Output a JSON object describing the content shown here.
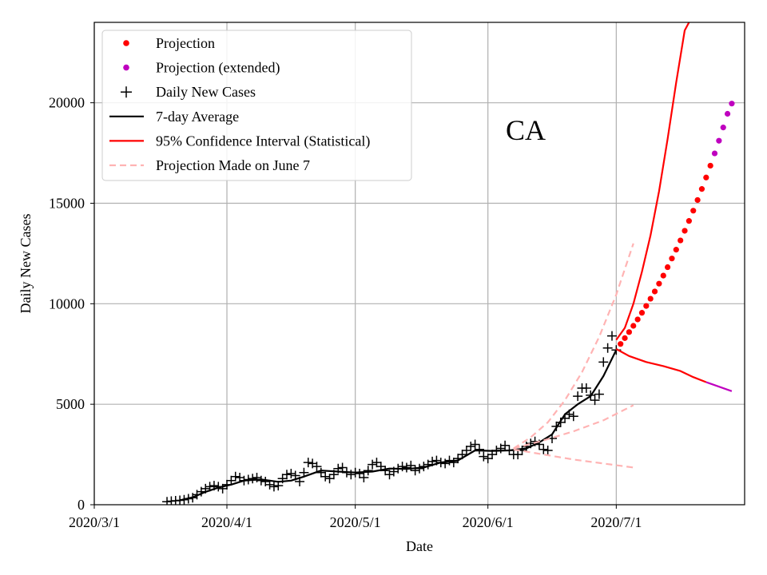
{
  "chart_data": {
    "type": "line",
    "title": "",
    "annotation": "CA",
    "xlabel": "Date",
    "ylabel": "Daily New Cases",
    "x_axis": "date",
    "xlim": [
      "2020-03-01",
      "2020-07-31"
    ],
    "ylim": [
      0,
      24000
    ],
    "x_ticks": [
      "2020-03-01",
      "2020-04-01",
      "2020-05-01",
      "2020-06-01",
      "2020-07-01"
    ],
    "x_tick_labels": [
      "2020/3/1",
      "2020/4/1",
      "2020/5/1",
      "2020/6/1",
      "2020/7/1"
    ],
    "y_ticks": [
      0,
      5000,
      10000,
      15000,
      20000
    ],
    "y_tick_labels": [
      "0",
      "5000",
      "10000",
      "15000",
      "20000"
    ],
    "grid": true,
    "legend_position": "top-left",
    "legend": [
      {
        "label": "Projection",
        "marker": "dot",
        "color": "#ff0000"
      },
      {
        "label": "Projection (extended)",
        "marker": "dot",
        "color": "#bf00bf"
      },
      {
        "label": "Daily New Cases",
        "marker": "plus",
        "color": "#000000"
      },
      {
        "label": "7-day Average",
        "marker": "line",
        "color": "#000000"
      },
      {
        "label": "95% Confidence Interval (Statistical)",
        "marker": "line",
        "color": "#ff0000"
      },
      {
        "label": "Projection Made on June 7",
        "marker": "dashed",
        "color": "#ffb3b3"
      }
    ],
    "series": [
      {
        "name": "Daily New Cases",
        "kind": "markers-plus",
        "color": "#000000",
        "points": [
          [
            "2020-03-18",
            150
          ],
          [
            "2020-03-19",
            180
          ],
          [
            "2020-03-20",
            200
          ],
          [
            "2020-03-21",
            220
          ],
          [
            "2020-03-22",
            250
          ],
          [
            "2020-03-23",
            300
          ],
          [
            "2020-03-24",
            350
          ],
          [
            "2020-03-25",
            500
          ],
          [
            "2020-03-26",
            650
          ],
          [
            "2020-03-27",
            800
          ],
          [
            "2020-03-28",
            900
          ],
          [
            "2020-03-29",
            950
          ],
          [
            "2020-03-30",
            900
          ],
          [
            "2020-03-31",
            800
          ],
          [
            "2020-04-01",
            1000
          ],
          [
            "2020-04-02",
            1200
          ],
          [
            "2020-04-03",
            1400
          ],
          [
            "2020-04-04",
            1350
          ],
          [
            "2020-04-05",
            1200
          ],
          [
            "2020-04-06",
            1250
          ],
          [
            "2020-04-07",
            1300
          ],
          [
            "2020-04-08",
            1350
          ],
          [
            "2020-04-09",
            1200
          ],
          [
            "2020-04-10",
            1150
          ],
          [
            "2020-04-11",
            1000
          ],
          [
            "2020-04-12",
            900
          ],
          [
            "2020-04-13",
            950
          ],
          [
            "2020-04-14",
            1300
          ],
          [
            "2020-04-15",
            1500
          ],
          [
            "2020-04-16",
            1550
          ],
          [
            "2020-04-17",
            1450
          ],
          [
            "2020-04-18",
            1150
          ],
          [
            "2020-04-19",
            1600
          ],
          [
            "2020-04-20",
            2100
          ],
          [
            "2020-04-21",
            2050
          ],
          [
            "2020-04-22",
            1900
          ],
          [
            "2020-04-23",
            1600
          ],
          [
            "2020-04-24",
            1400
          ],
          [
            "2020-04-25",
            1300
          ],
          [
            "2020-04-26",
            1500
          ],
          [
            "2020-04-27",
            1800
          ],
          [
            "2020-04-28",
            1850
          ],
          [
            "2020-04-29",
            1600
          ],
          [
            "2020-04-30",
            1500
          ],
          [
            "2020-05-01",
            1600
          ],
          [
            "2020-05-02",
            1550
          ],
          [
            "2020-05-03",
            1350
          ],
          [
            "2020-05-04",
            1700
          ],
          [
            "2020-05-05",
            2000
          ],
          [
            "2020-05-06",
            2100
          ],
          [
            "2020-05-07",
            1900
          ],
          [
            "2020-05-08",
            1700
          ],
          [
            "2020-05-09",
            1500
          ],
          [
            "2020-05-10",
            1650
          ],
          [
            "2020-05-11",
            1800
          ],
          [
            "2020-05-12",
            1900
          ],
          [
            "2020-05-13",
            1850
          ],
          [
            "2020-05-14",
            1950
          ],
          [
            "2020-05-15",
            1700
          ],
          [
            "2020-05-16",
            1800
          ],
          [
            "2020-05-17",
            1900
          ],
          [
            "2020-05-18",
            2000
          ],
          [
            "2020-05-19",
            2150
          ],
          [
            "2020-05-20",
            2200
          ],
          [
            "2020-05-21",
            2100
          ],
          [
            "2020-05-22",
            2050
          ],
          [
            "2020-05-23",
            2200
          ],
          [
            "2020-05-24",
            2100
          ],
          [
            "2020-05-25",
            2300
          ],
          [
            "2020-05-26",
            2500
          ],
          [
            "2020-05-27",
            2700
          ],
          [
            "2020-05-28",
            2900
          ],
          [
            "2020-05-29",
            3000
          ],
          [
            "2020-05-30",
            2750
          ],
          [
            "2020-05-31",
            2400
          ],
          [
            "2020-06-01",
            2300
          ],
          [
            "2020-06-02",
            2500
          ],
          [
            "2020-06-03",
            2700
          ],
          [
            "2020-06-04",
            2800
          ],
          [
            "2020-06-05",
            2950
          ],
          [
            "2020-06-06",
            2700
          ],
          [
            "2020-06-07",
            2500
          ],
          [
            "2020-06-08",
            2500
          ],
          [
            "2020-06-09",
            2700
          ],
          [
            "2020-06-10",
            2900
          ],
          [
            "2020-06-11",
            3050
          ],
          [
            "2020-06-12",
            3150
          ],
          [
            "2020-06-13",
            3000
          ],
          [
            "2020-06-14",
            2750
          ],
          [
            "2020-06-15",
            2700
          ],
          [
            "2020-06-16",
            3300
          ],
          [
            "2020-06-17",
            3900
          ],
          [
            "2020-06-18",
            4100
          ],
          [
            "2020-06-19",
            4300
          ],
          [
            "2020-06-20",
            4500
          ],
          [
            "2020-06-21",
            4400
          ],
          [
            "2020-06-22",
            5400
          ],
          [
            "2020-06-23",
            5800
          ],
          [
            "2020-06-24",
            5800
          ],
          [
            "2020-06-25",
            5450
          ],
          [
            "2020-06-26",
            5200
          ],
          [
            "2020-06-27",
            5500
          ],
          [
            "2020-06-28",
            7100
          ],
          [
            "2020-06-29",
            7800
          ],
          [
            "2020-06-30",
            8400
          ],
          [
            "2020-07-01",
            7700
          ]
        ]
      },
      {
        "name": "7-day Average",
        "kind": "line",
        "color": "#000000",
        "points": [
          [
            "2020-03-21",
            220
          ],
          [
            "2020-03-24",
            370
          ],
          [
            "2020-03-27",
            640
          ],
          [
            "2020-03-30",
            850
          ],
          [
            "2020-04-02",
            1000
          ],
          [
            "2020-04-05",
            1200
          ],
          [
            "2020-04-09",
            1260
          ],
          [
            "2020-04-13",
            1140
          ],
          [
            "2020-04-16",
            1200
          ],
          [
            "2020-04-19",
            1400
          ],
          [
            "2020-04-23",
            1700
          ],
          [
            "2020-04-27",
            1650
          ],
          [
            "2020-05-01",
            1600
          ],
          [
            "2020-05-05",
            1650
          ],
          [
            "2020-05-09",
            1800
          ],
          [
            "2020-05-13",
            1780
          ],
          [
            "2020-05-17",
            1850
          ],
          [
            "2020-05-21",
            2100
          ],
          [
            "2020-05-25",
            2200
          ],
          [
            "2020-05-29",
            2700
          ],
          [
            "2020-06-02",
            2680
          ],
          [
            "2020-06-06",
            2700
          ],
          [
            "2020-06-10",
            2800
          ],
          [
            "2020-06-13",
            3100
          ],
          [
            "2020-06-16",
            3500
          ],
          [
            "2020-06-19",
            4500
          ],
          [
            "2020-06-22",
            5000
          ],
          [
            "2020-06-25",
            5400
          ],
          [
            "2020-06-28",
            6400
          ],
          [
            "2020-07-01",
            7700
          ]
        ]
      },
      {
        "name": "Projection",
        "kind": "markers-dot",
        "color": "#ff0000",
        "points": [
          [
            "2020-07-02",
            8000
          ],
          [
            "2020-07-03",
            8290
          ],
          [
            "2020-07-04",
            8590
          ],
          [
            "2020-07-05",
            8900
          ],
          [
            "2020-07-06",
            9220
          ],
          [
            "2020-07-07",
            9550
          ],
          [
            "2020-07-08",
            9890
          ],
          [
            "2020-07-09",
            10250
          ],
          [
            "2020-07-10",
            10610
          ],
          [
            "2020-07-11",
            11000
          ],
          [
            "2020-07-12",
            11400
          ],
          [
            "2020-07-13",
            11820
          ],
          [
            "2020-07-14",
            12250
          ],
          [
            "2020-07-15",
            12690
          ],
          [
            "2020-07-16",
            13150
          ],
          [
            "2020-07-17",
            13630
          ],
          [
            "2020-07-18",
            14120
          ],
          [
            "2020-07-19",
            14630
          ],
          [
            "2020-07-20",
            15160
          ],
          [
            "2020-07-21",
            15710
          ],
          [
            "2020-07-22",
            16280
          ],
          [
            "2020-07-23",
            16870
          ]
        ]
      },
      {
        "name": "Projection (extended)",
        "kind": "markers-dot",
        "color": "#bf00bf",
        "points": [
          [
            "2020-07-24",
            17480
          ],
          [
            "2020-07-25",
            18110
          ],
          [
            "2020-07-26",
            18770
          ],
          [
            "2020-07-27",
            19450
          ],
          [
            "2020-07-28",
            19960
          ]
        ]
      },
      {
        "name": "95% Confidence Interval (Statistical)",
        "kind": "line",
        "color": "#ff0000",
        "points": [
          [
            "2020-07-01",
            8200
          ],
          [
            "2020-07-03",
            8800
          ],
          [
            "2020-07-05",
            10000
          ],
          [
            "2020-07-07",
            11600
          ],
          [
            "2020-07-09",
            13400
          ],
          [
            "2020-07-11",
            15600
          ],
          [
            "2020-07-13",
            18200
          ],
          [
            "2020-07-15",
            21000
          ],
          [
            "2020-07-17",
            23600
          ],
          [
            "2020-07-18",
            24000
          ]
        ]
      },
      {
        "name": "95% Confidence Interval (Statistical)",
        "kind": "line",
        "color": "#ff0000",
        "points": [
          [
            "2020-07-01",
            7750
          ],
          [
            "2020-07-04",
            7400
          ],
          [
            "2020-07-08",
            7100
          ],
          [
            "2020-07-12",
            6900
          ],
          [
            "2020-07-16",
            6650
          ],
          [
            "2020-07-19",
            6350
          ],
          [
            "2020-07-22",
            6100
          ]
        ]
      },
      {
        "name": "95% Confidence Interval (Statistical)",
        "kind": "line",
        "color": "#bf00bf",
        "points": [
          [
            "2020-07-22",
            6100
          ],
          [
            "2020-07-28",
            5650
          ]
        ]
      },
      {
        "name": "Projection Made on June 7",
        "kind": "dashed",
        "color": "#ffb3b3",
        "points": [
          [
            "2020-06-07",
            2800
          ],
          [
            "2020-06-11",
            3350
          ],
          [
            "2020-06-15",
            4100
          ],
          [
            "2020-06-19",
            5200
          ],
          [
            "2020-06-23",
            6600
          ],
          [
            "2020-06-27",
            8350
          ],
          [
            "2020-07-01",
            10450
          ],
          [
            "2020-07-05",
            13000
          ]
        ]
      },
      {
        "name": "Projection Made on June 7",
        "kind": "dashed",
        "color": "#ffb3b3",
        "points": [
          [
            "2020-06-07",
            2800
          ],
          [
            "2020-06-14",
            3200
          ],
          [
            "2020-06-21",
            3650
          ],
          [
            "2020-06-28",
            4200
          ],
          [
            "2020-07-05",
            4950
          ]
        ]
      },
      {
        "name": "Projection Made on June 7",
        "kind": "dashed",
        "color": "#ffb3b3",
        "points": [
          [
            "2020-06-07",
            2750
          ],
          [
            "2020-06-14",
            2500
          ],
          [
            "2020-06-21",
            2250
          ],
          [
            "2020-06-28",
            2050
          ],
          [
            "2020-07-05",
            1850
          ]
        ]
      }
    ]
  }
}
